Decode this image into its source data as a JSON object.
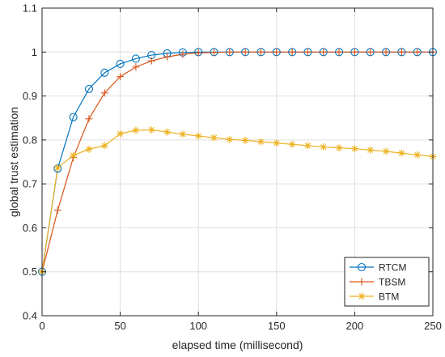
{
  "chart_data": {
    "type": "line",
    "xlabel": "elapsed time (millisecond)",
    "ylabel": "global trust estimation",
    "xlim": [
      0,
      250
    ],
    "ylim": [
      0.4,
      1.1
    ],
    "xticks": [
      0,
      50,
      100,
      150,
      200,
      250
    ],
    "yticks": [
      0.4,
      0.5,
      0.6,
      0.7,
      0.8,
      0.9,
      1,
      1.1
    ],
    "grid": true,
    "legend_position": "bottom-right",
    "x": [
      0,
      10,
      20,
      30,
      40,
      50,
      60,
      70,
      80,
      90,
      100,
      110,
      120,
      130,
      140,
      150,
      160,
      170,
      180,
      190,
      200,
      210,
      220,
      230,
      240,
      250
    ],
    "series": [
      {
        "name": "RTCM",
        "color": "#0072bd",
        "marker": "circle",
        "values": [
          0.5,
          0.735,
          0.852,
          0.916,
          0.953,
          0.973,
          0.985,
          0.993,
          0.997,
          0.999,
          1.0,
          1.0,
          1.0,
          1.0,
          1.0,
          1.0,
          1.0,
          1.0,
          1.0,
          1.0,
          1.0,
          1.0,
          1.0,
          1.0,
          1.0,
          1.0
        ]
      },
      {
        "name": "TBSM",
        "color": "#d95319",
        "marker": "plus",
        "values": [
          0.5,
          0.64,
          0.76,
          0.848,
          0.907,
          0.944,
          0.966,
          0.98,
          0.989,
          0.995,
          0.998,
          0.999,
          1.0,
          1.0,
          1.0,
          1.0,
          1.0,
          1.0,
          1.0,
          1.0,
          1.0,
          1.0,
          1.0,
          1.0,
          1.0,
          1.0
        ]
      },
      {
        "name": "BTM",
        "color": "#edb120",
        "marker": "asterisk",
        "values": [
          0.5,
          0.737,
          0.765,
          0.779,
          0.787,
          0.814,
          0.822,
          0.823,
          0.818,
          0.813,
          0.809,
          0.805,
          0.801,
          0.799,
          0.796,
          0.793,
          0.79,
          0.787,
          0.784,
          0.782,
          0.78,
          0.777,
          0.774,
          0.77,
          0.766,
          0.762
        ]
      }
    ]
  }
}
